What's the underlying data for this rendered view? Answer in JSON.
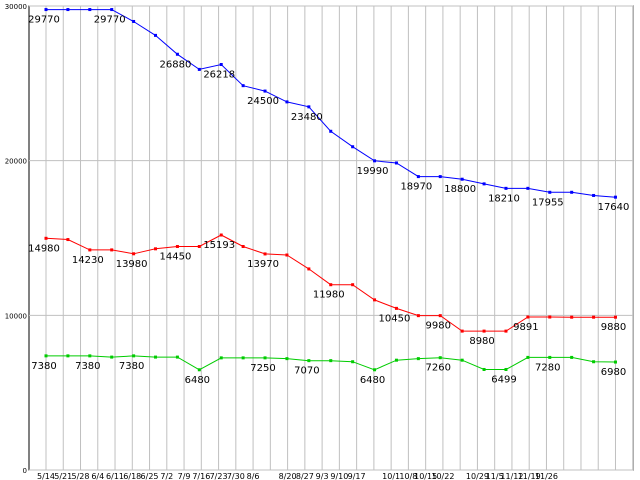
{
  "chart_data": {
    "type": "line",
    "title": "",
    "xlabel": "",
    "ylabel": "",
    "ylim": [
      0,
      30000
    ],
    "grid": true,
    "y_ticks": [
      "0",
      "10000",
      "20000",
      "30000"
    ],
    "categories": [
      "5/14",
      "5/21",
      "5/28",
      "6/4",
      "6/11",
      "6/18",
      "6/25",
      "7/2",
      "7/9",
      "7/16",
      "7/23",
      "7/30",
      "8/6",
      "8/20",
      "8/27",
      "9/3",
      "9/10",
      "9/17",
      "10/1",
      "10/8",
      "10/15",
      "10/22",
      "10/29",
      "11/5",
      "11/12",
      "11/19",
      "11/26"
    ],
    "x_positions": [
      0,
      1,
      2,
      3,
      4,
      5,
      6,
      7,
      8,
      9,
      10,
      11,
      12,
      13,
      14,
      15,
      16,
      17,
      18,
      19,
      20,
      21,
      22,
      23,
      24,
      25,
      26,
      27,
      28,
      29,
      30,
      31,
      32,
      33,
      34
    ],
    "x_label_positions": [
      0,
      1,
      2,
      3,
      4,
      5,
      6,
      7,
      8,
      9,
      10,
      11,
      12,
      14,
      15,
      16,
      17,
      18,
      20,
      21,
      22,
      23,
      25,
      26,
      27,
      28,
      29
    ],
    "series": [
      {
        "name": "",
        "color": "#0000ff",
        "values": [
          29770,
          29770,
          29770,
          29770,
          29000,
          28100,
          26880,
          25900,
          26218,
          24850,
          24500,
          23800,
          23480,
          21900,
          20900,
          19990,
          19850,
          18970,
          18970,
          18800,
          18500,
          18210,
          18210,
          17955,
          17955,
          17750,
          17640
        ],
        "labels": [
          {
            "i": 0,
            "text": "29770"
          },
          {
            "i": 3,
            "text": "29770"
          },
          {
            "i": 6,
            "text": "26880"
          },
          {
            "i": 8,
            "text": "26218"
          },
          {
            "i": 10,
            "text": "24500"
          },
          {
            "i": 12,
            "text": "23480"
          },
          {
            "i": 15,
            "text": "19990"
          },
          {
            "i": 17,
            "text": "18970"
          },
          {
            "i": 19,
            "text": "18800"
          },
          {
            "i": 21,
            "text": "18210"
          },
          {
            "i": 23,
            "text": "17955"
          },
          {
            "i": 26,
            "text": "17640"
          }
        ]
      },
      {
        "name": "",
        "color": "#ff0000",
        "values": [
          14980,
          14900,
          14230,
          14230,
          13980,
          14300,
          14450,
          14450,
          15193,
          14450,
          13970,
          13900,
          13000,
          11980,
          11980,
          11000,
          10450,
          9980,
          9980,
          8980,
          8980,
          8980,
          9891,
          9891,
          9880,
          9880,
          9880
        ],
        "labels": [
          {
            "i": 0,
            "text": "14980"
          },
          {
            "i": 2,
            "text": "14230"
          },
          {
            "i": 4,
            "text": "13980"
          },
          {
            "i": 6,
            "text": "14450"
          },
          {
            "i": 8,
            "text": "15193"
          },
          {
            "i": 10,
            "text": "13970"
          },
          {
            "i": 13,
            "text": "11980"
          },
          {
            "i": 16,
            "text": "10450"
          },
          {
            "i": 18,
            "text": "9980"
          },
          {
            "i": 20,
            "text": "8980"
          },
          {
            "i": 22,
            "text": "9891"
          },
          {
            "i": 26,
            "text": "9880"
          }
        ]
      },
      {
        "name": "",
        "color": "#00cc00",
        "values": [
          7380,
          7380,
          7380,
          7300,
          7380,
          7300,
          7300,
          6480,
          7250,
          7250,
          7250,
          7200,
          7070,
          7070,
          7000,
          6480,
          7100,
          7200,
          7260,
          7100,
          6499,
          6499,
          7280,
          7280,
          7280,
          7000,
          6980
        ],
        "labels": [
          {
            "i": 0,
            "text": "7380"
          },
          {
            "i": 2,
            "text": "7380"
          },
          {
            "i": 4,
            "text": "7380"
          },
          {
            "i": 7,
            "text": "6480"
          },
          {
            "i": 10,
            "text": "7250"
          },
          {
            "i": 12,
            "text": "7070"
          },
          {
            "i": 15,
            "text": "6480"
          },
          {
            "i": 18,
            "text": "7260"
          },
          {
            "i": 21,
            "text": "6499"
          },
          {
            "i": 23,
            "text": "7280"
          },
          {
            "i": 26,
            "text": "6980"
          }
        ]
      }
    ]
  }
}
